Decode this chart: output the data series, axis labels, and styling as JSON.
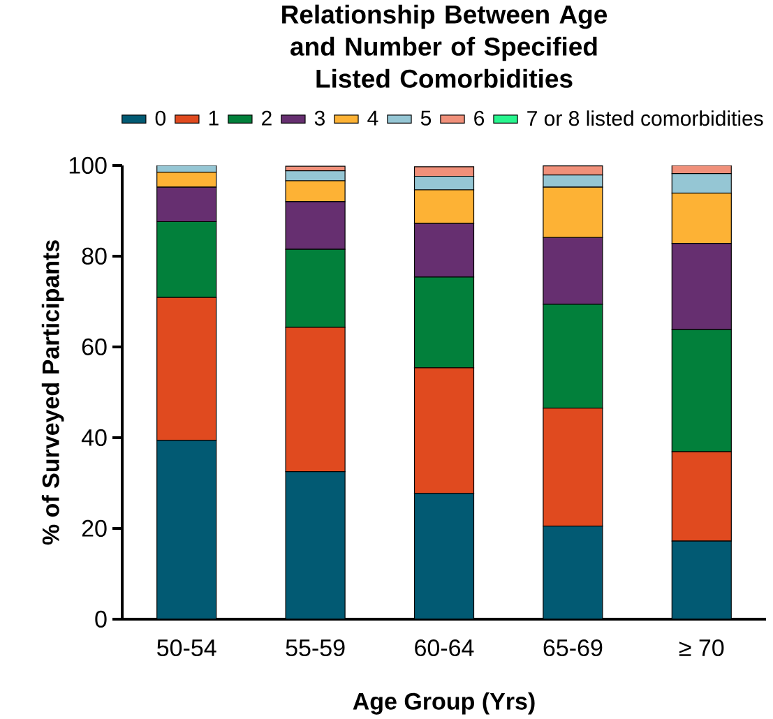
{
  "chart_data": {
    "type": "bar",
    "stacked": true,
    "title": "Relationship Between Age and Number of Specified Listed Comorbidities",
    "xlabel": "Age Group (Yrs)",
    "ylabel": "% of Surveyed Participants",
    "categories": [
      "50-54",
      "55-59",
      "60-64",
      "65-69",
      "≥ 70"
    ],
    "ylim": [
      0,
      100
    ],
    "yticks": [
      0,
      20,
      40,
      60,
      80,
      100
    ],
    "legend": "top",
    "grid": false,
    "series": [
      {
        "name": "0",
        "color": "#025a73",
        "values": [
          39.4,
          32.5,
          27.7,
          20.5,
          17.2
        ]
      },
      {
        "name": "1",
        "color": "#e04a1f",
        "values": [
          31.5,
          31.8,
          27.7,
          26.0,
          19.7
        ]
      },
      {
        "name": "2",
        "color": "#02803b",
        "values": [
          16.7,
          17.2,
          20.0,
          22.9,
          26.9
        ]
      },
      {
        "name": "3",
        "color": "#662f70",
        "values": [
          7.6,
          10.5,
          11.8,
          14.7,
          19.0
        ]
      },
      {
        "name": "4",
        "color": "#fdb235",
        "values": [
          3.3,
          4.6,
          7.4,
          11.1,
          11.1
        ]
      },
      {
        "name": "5",
        "color": "#95c6d4",
        "values": [
          1.5,
          2.2,
          3.0,
          2.7,
          4.3
        ]
      },
      {
        "name": "6",
        "color": "#f0907a",
        "values": [
          0,
          1.0,
          2.1,
          2.0,
          1.8
        ]
      },
      {
        "name": "7 or 8 listed comorbidities",
        "color": "#28f58e",
        "values": [
          0,
          0,
          0,
          0,
          0
        ]
      }
    ]
  }
}
